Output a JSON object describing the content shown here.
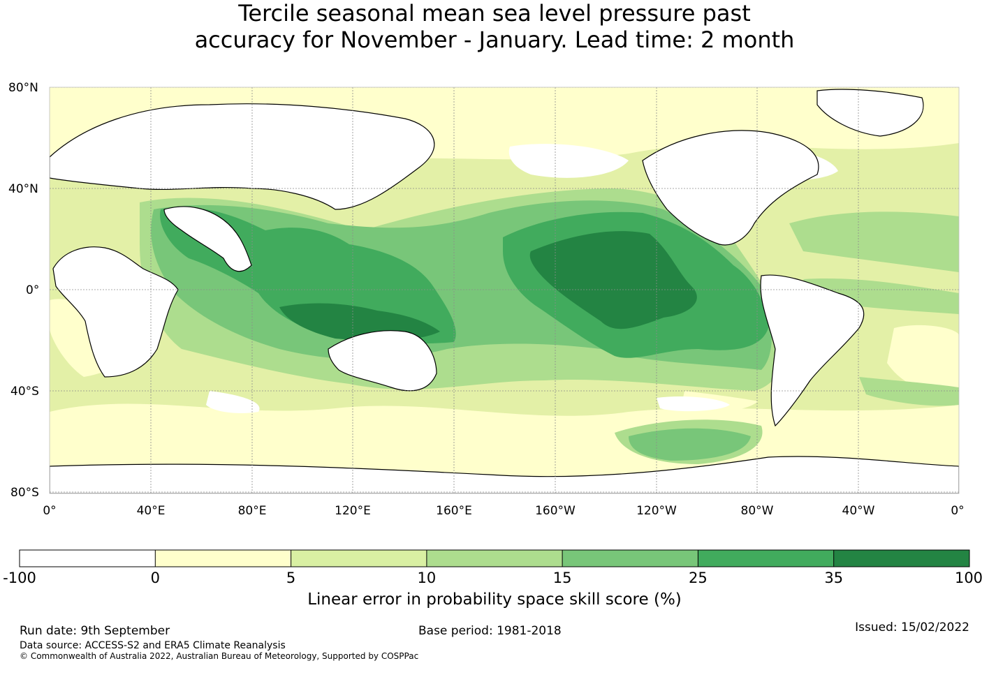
{
  "title": {
    "line1": "Tercile seasonal mean sea level pressure past",
    "line2": "accuracy for November - January. Lead time: 2 month"
  },
  "map": {
    "lat_labels": [
      "80°N",
      "40°N",
      "0°",
      "40°S",
      "80°S"
    ],
    "lon_labels": [
      "0°",
      "40°E",
      "80°E",
      "120°E",
      "160°E",
      "160°W",
      "120°W",
      "80°W",
      "40°W",
      "0°"
    ],
    "colors": {
      "ocean_bg": "#e3f0a7",
      "land": "#ffffff",
      "coast": "#000000",
      "grid": "#8c8c8c"
    }
  },
  "colorbar": {
    "boundaries": [
      "-100",
      "0",
      "5",
      "10",
      "15",
      "25",
      "35",
      "100"
    ],
    "colors": [
      "#ffffff",
      "#ffffcc",
      "#d9f0a3",
      "#addd8e",
      "#78c679",
      "#41ab5d",
      "#238443"
    ],
    "caption": "Linear error in probability space skill score (%)"
  },
  "footer": {
    "run_date": "Run date: 9th September",
    "base_period": "Base period: 1981-2018",
    "issued": "Issued: 15/02/2022",
    "data_source": "Data source: ACCESS-S2 and ERA5 Climate Reanalysis",
    "copyright": "© Commonwealth of Australia 2022, Australian Bureau of Meteorology, Supported by COSPPac"
  }
}
